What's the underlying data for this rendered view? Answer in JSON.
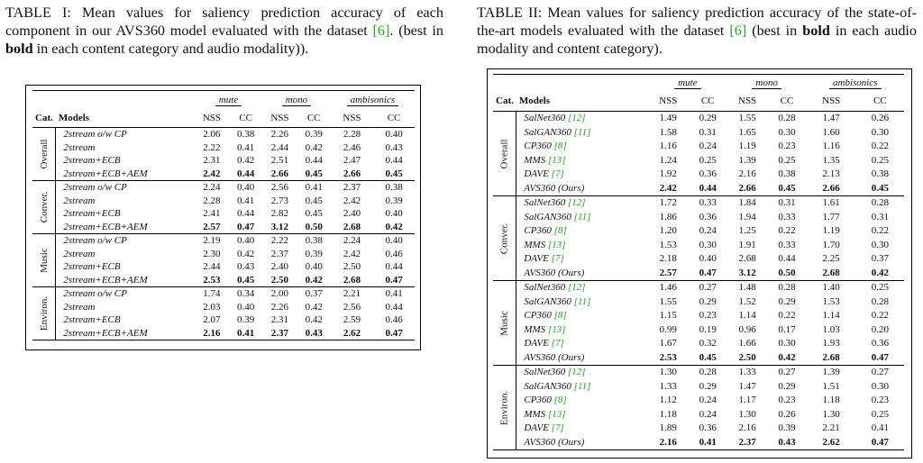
{
  "table1": {
    "caption_label": "TABLE I:",
    "caption_a": " Mean values for saliency prediction accuracy of each component in our AVS360 model evaluated with the dataset ",
    "caption_ref": "[6]",
    "caption_b": ". (best in ",
    "caption_bold": "bold",
    "caption_c": " in each content category and audio modality)).",
    "mod_headers": [
      "mute",
      "mono",
      "ambisonics"
    ],
    "col_cat": "Cat.",
    "col_models": "Models",
    "nss": "NSS",
    "cc": "CC",
    "groups": [
      {
        "label": "Overall",
        "rows": [
          {
            "model": "2stream o/w CP",
            "vals": [
              "2.06",
              "0.38",
              "2.26",
              "0.39",
              "2.28",
              "0.40"
            ],
            "bold": false
          },
          {
            "model": "2stream",
            "vals": [
              "2.22",
              "0.41",
              "2.44",
              "0.42",
              "2.46",
              "0.43"
            ],
            "bold": false
          },
          {
            "model": "2stream+ECB",
            "vals": [
              "2.31",
              "0.42",
              "2.51",
              "0.44",
              "2.47",
              "0.44"
            ],
            "bold": false
          },
          {
            "model": "2stream+ECB+AEM",
            "vals": [
              "2.42",
              "0.44",
              "2.66",
              "0.45",
              "2.66",
              "0.45"
            ],
            "bold": true
          }
        ]
      },
      {
        "label": "Conver.",
        "rows": [
          {
            "model": "2stream o/w CP",
            "vals": [
              "2.24",
              "0.40",
              "2.56",
              "0.41",
              "2.37",
              "0.38"
            ],
            "bold": false
          },
          {
            "model": "2stream",
            "vals": [
              "2.28",
              "0.41",
              "2.73",
              "0.45",
              "2.42",
              "0.39"
            ],
            "bold": false
          },
          {
            "model": "2stream+ECB",
            "vals": [
              "2.41",
              "0.44",
              "2.82",
              "0.45",
              "2.40",
              "0.40"
            ],
            "bold": false
          },
          {
            "model": "2stream+ECB+AEM",
            "vals": [
              "2.57",
              "0.47",
              "3.12",
              "0.50",
              "2.68",
              "0.42"
            ],
            "bold": true
          }
        ]
      },
      {
        "label": "Music",
        "rows": [
          {
            "model": "2stream o/w CP",
            "vals": [
              "2.19",
              "0.40",
              "2.22",
              "0.38",
              "2.24",
              "0.40"
            ],
            "bold": false
          },
          {
            "model": "2stream",
            "vals": [
              "2.30",
              "0.42",
              "2.37",
              "0.39",
              "2.42",
              "0.46"
            ],
            "bold": false
          },
          {
            "model": "2stream+ECB",
            "vals": [
              "2.44",
              "0.43",
              "2.40",
              "0.40",
              "2.50",
              "0.44"
            ],
            "bold": false
          },
          {
            "model": "2stream+ECB+AEM",
            "vals": [
              "2.53",
              "0.45",
              "2.50",
              "0.42",
              "2.68",
              "0.47"
            ],
            "bold": true
          }
        ]
      },
      {
        "label": "Environ.",
        "rows": [
          {
            "model": "2stream o/w CP",
            "vals": [
              "1.74",
              "0.34",
              "2.00",
              "0.37",
              "2.21",
              "0.41"
            ],
            "bold": false
          },
          {
            "model": "2stream",
            "vals": [
              "2.03",
              "0.40",
              "2.26",
              "0.42",
              "2.56",
              "0.44"
            ],
            "bold": false
          },
          {
            "model": "2stream+ECB",
            "vals": [
              "2.07",
              "0.39",
              "2.31",
              "0.42",
              "2.59",
              "0.46"
            ],
            "bold": false
          },
          {
            "model": "2stream+ECB+AEM",
            "vals": [
              "2.16",
              "0.41",
              "2.37",
              "0.43",
              "2.62",
              "0.47"
            ],
            "bold": true
          }
        ]
      }
    ]
  },
  "table2": {
    "caption_label": "TABLE II:",
    "caption_a": " Mean values for saliency prediction accuracy of the state-of-the-art models evaluated with the dataset ",
    "caption_ref": "[6]",
    "caption_b": " (best in ",
    "caption_bold": "bold",
    "caption_c": " in each audio modality and content category).",
    "mod_headers": [
      "mute",
      "mono",
      "ambisonics"
    ],
    "col_cat": "Cat.",
    "col_models": "Models",
    "nss": "NSS",
    "cc": "CC",
    "groups": [
      {
        "label": "Overall",
        "rows": [
          {
            "model": "SalNet360",
            "ref": "[12]",
            "vals": [
              "1.49",
              "0.29",
              "1.55",
              "0.28",
              "1.47",
              "0.26"
            ],
            "bold": false
          },
          {
            "model": "SalGAN360",
            "ref": "[11]",
            "vals": [
              "1.58",
              "0.31",
              "1.65",
              "0.30",
              "1.60",
              "0.30"
            ],
            "bold": false
          },
          {
            "model": "CP360",
            "ref": "[8]",
            "vals": [
              "1.16",
              "0.24",
              "1.19",
              "0.23",
              "1.16",
              "0.22"
            ],
            "bold": false
          },
          {
            "model": "MMS",
            "ref": "[13]",
            "vals": [
              "1.24",
              "0.25",
              "1.39",
              "0.25",
              "1.35",
              "0.25"
            ],
            "bold": false
          },
          {
            "model": "DAVE",
            "ref": "[7]",
            "vals": [
              "1.92",
              "0.36",
              "2.16",
              "0.38",
              "2.13",
              "0.38"
            ],
            "bold": false
          },
          {
            "model": "AVS360 (Ours)",
            "ref": "",
            "vals": [
              "2.42",
              "0.44",
              "2.66",
              "0.45",
              "2.66",
              "0.45"
            ],
            "bold": true
          }
        ]
      },
      {
        "label": "Conver.",
        "rows": [
          {
            "model": "SalNet360",
            "ref": "[12]",
            "vals": [
              "1.72",
              "0.33",
              "1.84",
              "0.31",
              "1.61",
              "0.28"
            ],
            "bold": false
          },
          {
            "model": "SalGAN360",
            "ref": "[11]",
            "vals": [
              "1.86",
              "0.36",
              "1.94",
              "0.33",
              "1.77",
              "0.31"
            ],
            "bold": false
          },
          {
            "model": "CP360",
            "ref": "[8]",
            "vals": [
              "1.20",
              "0.24",
              "1.25",
              "0.22",
              "1.19",
              "0.22"
            ],
            "bold": false
          },
          {
            "model": "MMS",
            "ref": "[13]",
            "vals": [
              "1.53",
              "0.30",
              "1.91",
              "0.33",
              "1.70",
              "0.30"
            ],
            "bold": false
          },
          {
            "model": "DAVE",
            "ref": "[7]",
            "vals": [
              "2.18",
              "0.40",
              "2.68",
              "0.44",
              "2.25",
              "0.37"
            ],
            "bold": false
          },
          {
            "model": "AVS360 (Ours)",
            "ref": "",
            "vals": [
              "2.57",
              "0.47",
              "3.12",
              "0.50",
              "2.68",
              "0.42"
            ],
            "bold": true
          }
        ]
      },
      {
        "label": "Music",
        "rows": [
          {
            "model": "SalNet360",
            "ref": "[12]",
            "vals": [
              "1.46",
              "0.27",
              "1.48",
              "0.28",
              "1.40",
              "0.25"
            ],
            "bold": false
          },
          {
            "model": "SalGAN360",
            "ref": "[11]",
            "vals": [
              "1.55",
              "0.29",
              "1.52",
              "0.29",
              "1.53",
              "0.28"
            ],
            "bold": false
          },
          {
            "model": "CP360",
            "ref": "[8]",
            "vals": [
              "1.15",
              "0.23",
              "1.14",
              "0.22",
              "1.14",
              "0.22"
            ],
            "bold": false
          },
          {
            "model": "MMS",
            "ref": "[13]",
            "vals": [
              "0.99",
              "0.19",
              "0.96",
              "0.17",
              "1.03",
              "0.20"
            ],
            "bold": false
          },
          {
            "model": "DAVE",
            "ref": "[7]",
            "vals": [
              "1.67",
              "0.32",
              "1.66",
              "0.30",
              "1.93",
              "0.36"
            ],
            "bold": false
          },
          {
            "model": "AVS360 (Ours)",
            "ref": "",
            "vals": [
              "2.53",
              "0.45",
              "2.50",
              "0.42",
              "2.68",
              "0.47"
            ],
            "bold": true
          }
        ]
      },
      {
        "label": "Environ.",
        "rows": [
          {
            "model": "SalNet360",
            "ref": "[12]",
            "vals": [
              "1.30",
              "0.28",
              "1.33",
              "0.27",
              "1.39",
              "0.27"
            ],
            "bold": false
          },
          {
            "model": "SalGAN360",
            "ref": "[11]",
            "vals": [
              "1.33",
              "0.29",
              "1.47",
              "0.29",
              "1.51",
              "0.30"
            ],
            "bold": false
          },
          {
            "model": "CP360",
            "ref": "[8]",
            "vals": [
              "1.12",
              "0.24",
              "1.17",
              "0.23",
              "1.18",
              "0.23"
            ],
            "bold": false
          },
          {
            "model": "MMS",
            "ref": "[13]",
            "vals": [
              "1.18",
              "0.24",
              "1.30",
              "0.26",
              "1.30",
              "0.25"
            ],
            "bold": false
          },
          {
            "model": "DAVE",
            "ref": "[7]",
            "vals": [
              "1.89",
              "0.36",
              "2.16",
              "0.39",
              "2.21",
              "0.41"
            ],
            "bold": false
          },
          {
            "model": "AVS360 (Ours)",
            "ref": "",
            "vals": [
              "2.16",
              "0.41",
              "2.37",
              "0.43",
              "2.62",
              "0.47"
            ],
            "bold": true
          }
        ]
      }
    ]
  }
}
